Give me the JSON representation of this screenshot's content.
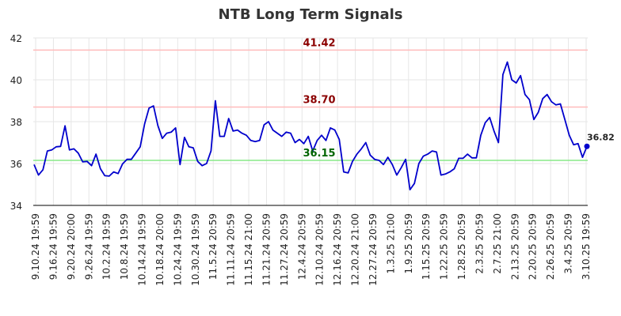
{
  "chart_data": {
    "type": "line",
    "title": "NTB Long Term Signals",
    "xlabel": "",
    "ylabel": "",
    "ylim": [
      34,
      42
    ],
    "yticks": [
      34,
      36,
      38,
      40,
      42
    ],
    "grid": true,
    "x_tick_labels": [
      "9.10.24 19:59",
      "9.16.24 19:59",
      "9.20.24 20:00",
      "9.26.24 19:59",
      "10.2.24 19:59",
      "10.8.24 19:59",
      "10.14.24 19:59",
      "10.18.24 20:00",
      "10.24.24 19:59",
      "10.30.24 19:59",
      "11.5.24 20:59",
      "11.11.24 20:59",
      "11.15.24 21:00",
      "11.21.24 20:59",
      "11.27.24 20:59",
      "12.4.24 20:59",
      "12.10.24 20:59",
      "12.16.24 20:59",
      "12.20.24 21:00",
      "12.27.24 20:59",
      "1.3.25 21:00",
      "1.9.25 20:59",
      "1.15.25 20:59",
      "1.22.25 20:59",
      "1.28.25 20:59",
      "2.3.25 20:59",
      "2.7.25 21:00",
      "2.13.25 20:59",
      "2.20.25 20:59",
      "2.26.25 20:59",
      "3.4.25 20:59",
      "3.10.25 19:59"
    ],
    "series": [
      {
        "name": "",
        "color": "#0000cc",
        "values": [
          35.95,
          35.45,
          35.7,
          36.6,
          36.65,
          36.8,
          36.82,
          37.8,
          36.65,
          36.7,
          36.5,
          36.08,
          36.1,
          35.9,
          36.45,
          35.75,
          35.42,
          35.4,
          35.6,
          35.52,
          35.98,
          36.2,
          36.2,
          36.5,
          36.8,
          37.9,
          38.65,
          38.75,
          37.8,
          37.2,
          37.45,
          37.5,
          37.7,
          35.95,
          37.25,
          36.8,
          36.75,
          36.1,
          35.9,
          36,
          36.6,
          39,
          37.3,
          37.3,
          38.15,
          37.55,
          37.6,
          37.45,
          37.35,
          37.1,
          37.05,
          37.1,
          37.85,
          38.0,
          37.6,
          37.45,
          37.3,
          37.5,
          37.45,
          37.0,
          37.15,
          36.95,
          37.3,
          36.6,
          37.1,
          37.35,
          37.1,
          37.7,
          37.6,
          37.15,
          35.6,
          35.55,
          36.1,
          36.45,
          36.7,
          37.0,
          36.4,
          36.2,
          36.15,
          35.95,
          36.3,
          35.95,
          35.45,
          35.8,
          36.2,
          34.75,
          35.05,
          36.0,
          36.35,
          36.45,
          36.6,
          36.55,
          35.45,
          35.5,
          35.6,
          35.75,
          36.25,
          36.25,
          36.45,
          36.27,
          36.27,
          37.35,
          37.95,
          38.2,
          37.55,
          37.0,
          40.25,
          40.85,
          40.0,
          39.85,
          40.2,
          39.3,
          39.05,
          38.1,
          38.45,
          39.1,
          39.3,
          38.95,
          38.8,
          38.85,
          38.1,
          37.35,
          36.9,
          36.95,
          36.3,
          36.82
        ]
      }
    ],
    "reference_lines": [
      {
        "value": 41.42,
        "label": "41.42",
        "line_color": "#ffbbbb",
        "label_color": "#8b0000"
      },
      {
        "value": 38.7,
        "label": "38.70",
        "line_color": "#ffbbbb",
        "label_color": "#8b0000"
      },
      {
        "value": 36.15,
        "label": "36.15",
        "line_color": "#88e888",
        "label_color": "#006400"
      }
    ],
    "last_point": {
      "value": 36.82,
      "label": "36.82"
    }
  }
}
